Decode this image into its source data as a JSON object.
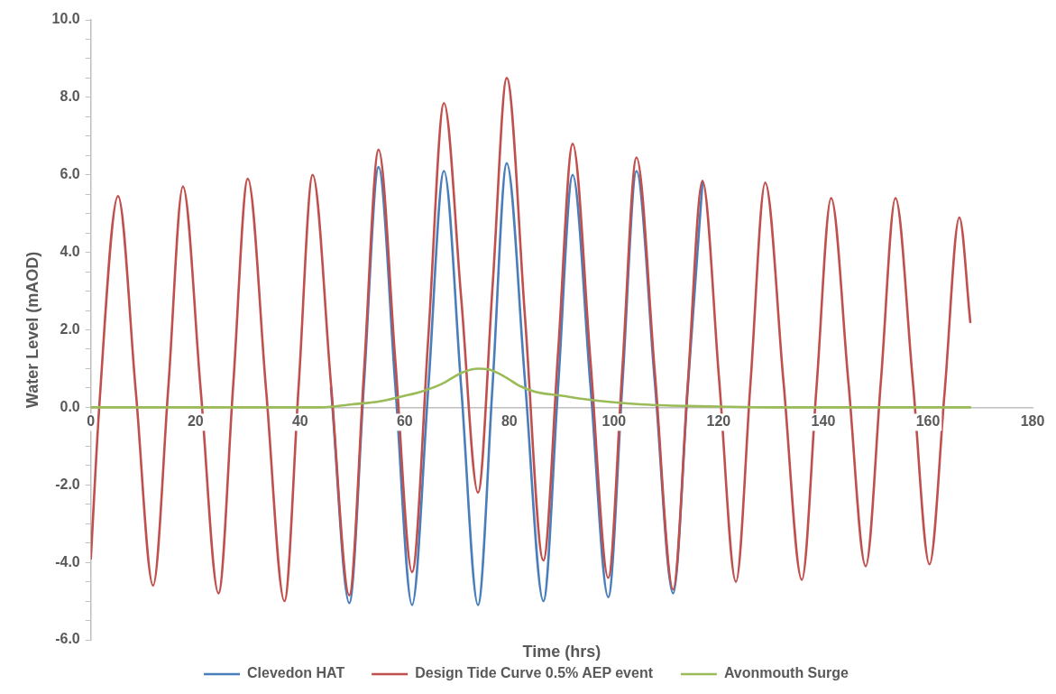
{
  "chart_data": {
    "type": "line",
    "xlabel": "Time (hrs)",
    "ylabel": "Water Level (mAOD)",
    "xlim": [
      0,
      180
    ],
    "xticks": [
      0,
      20,
      40,
      60,
      80,
      100,
      120,
      140,
      160,
      180
    ],
    "ylim": [
      -6,
      10
    ],
    "yticks": [
      {
        "value": -6,
        "label": "-6.0"
      },
      {
        "value": -5.5,
        "label": null
      },
      {
        "value": -5,
        "label": null
      },
      {
        "value": -4.5,
        "label": null
      },
      {
        "value": -4,
        "label": "-4.0"
      },
      {
        "value": -3.5,
        "label": null
      },
      {
        "value": -3,
        "label": null
      },
      {
        "value": -2.5,
        "label": null
      },
      {
        "value": -2,
        "label": "-2.0"
      },
      {
        "value": -1.5,
        "label": null
      },
      {
        "value": -1,
        "label": null
      },
      {
        "value": -0.5,
        "label": null
      },
      {
        "value": 0,
        "label": "0.0"
      },
      {
        "value": 0.5,
        "label": null
      },
      {
        "value": 1,
        "label": null
      },
      {
        "value": 1.5,
        "label": null
      },
      {
        "value": 2,
        "label": "2.0"
      },
      {
        "value": 2.5,
        "label": null
      },
      {
        "value": 3,
        "label": null
      },
      {
        "value": 3.5,
        "label": null
      },
      {
        "value": 4,
        "label": "4.0"
      },
      {
        "value": 4.5,
        "label": null
      },
      {
        "value": 5,
        "label": null
      },
      {
        "value": 5.5,
        "label": null
      },
      {
        "value": 6,
        "label": "6.0"
      },
      {
        "value": 6.5,
        "label": null
      },
      {
        "value": 7,
        "label": null
      },
      {
        "value": 7.5,
        "label": null
      },
      {
        "value": 8,
        "label": "8.0"
      },
      {
        "value": 8.5,
        "label": null
      },
      {
        "value": 9,
        "label": null
      },
      {
        "value": 9.5,
        "label": null
      },
      {
        "value": 10,
        "label": "10.0"
      }
    ],
    "grid": false,
    "legend": "bottom",
    "marker": "none",
    "line_style": "solid",
    "series": [
      {
        "name": "Clevedon HAT",
        "color": "#4a7ebb",
        "x": [
          45.9,
          49.4,
          52.2,
          55,
          58.2,
          61.4,
          64.5,
          67.5,
          70.8,
          74,
          76.8,
          79.5,
          83,
          86.5,
          89.3,
          92.1,
          95.5,
          98.9,
          101.6,
          104.3,
          107.8,
          111.3,
          114.1,
          116.9
        ],
        "values": [
          0.5,
          -5.05,
          0.6,
          6.2,
          0.55,
          -5.1,
          0.5,
          6.1,
          0.5,
          -5.1,
          0.6,
          6.3,
          0.65,
          -5.0,
          0.5,
          6.0,
          0.55,
          -4.9,
          0.6,
          6.1,
          0.65,
          -4.8,
          0.5,
          5.8
        ]
      },
      {
        "name": "Design Tide Curve 0.5% AEP event",
        "color": "#c0504d",
        "x": [
          0,
          1.6,
          5.2,
          8.6,
          11.9,
          14.8,
          17.6,
          21,
          24.4,
          27.2,
          30,
          33.5,
          37,
          39.7,
          42.4,
          45.9,
          49.4,
          52.2,
          55,
          58.2,
          61.4,
          64.5,
          67.5,
          70.8,
          74,
          76.8,
          79.5,
          83,
          86.5,
          89.3,
          92.1,
          95.5,
          98.9,
          101.6,
          104.3,
          107.8,
          111.3,
          114.1,
          116.9,
          120.1,
          123.3,
          126.1,
          128.9,
          132.4,
          135.9,
          138.7,
          141.5,
          144.8,
          148.1,
          151,
          153.8,
          157.1,
          160.3,
          163.2,
          166,
          168.1
        ],
        "values": [
          -3.9,
          0,
          5.45,
          0.4,
          -4.6,
          0.5,
          5.7,
          0.45,
          -4.8,
          0.55,
          5.9,
          0.45,
          -5.0,
          0.5,
          6.0,
          0.6,
          -4.85,
          0.9,
          6.65,
          1.2,
          -4.25,
          1.8,
          7.85,
          2.8,
          -2.2,
          3.15,
          8.5,
          2.3,
          -3.95,
          1.4,
          6.8,
          1.2,
          -4.4,
          1.0,
          6.45,
          0.9,
          -4.7,
          0.6,
          5.85,
          0.7,
          -4.5,
          0.65,
          5.8,
          0.65,
          -4.45,
          0.5,
          5.4,
          0.65,
          -4.1,
          0.65,
          5.4,
          0.7,
          -4.05,
          0.4,
          4.9,
          2.2
        ]
      },
      {
        "name": "Avonmouth Surge",
        "color": "#9bbb59",
        "x": [
          0,
          44,
          50,
          55,
          60,
          63,
          67,
          71,
          74,
          76,
          79,
          82,
          85,
          90,
          95,
          100,
          105,
          110,
          120,
          130,
          168.1
        ],
        "values": [
          0,
          0,
          0.08,
          0.15,
          0.3,
          0.4,
          0.6,
          0.9,
          1.0,
          0.98,
          0.8,
          0.55,
          0.4,
          0.3,
          0.2,
          0.13,
          0.08,
          0.05,
          0.02,
          0,
          0
        ]
      }
    ]
  }
}
